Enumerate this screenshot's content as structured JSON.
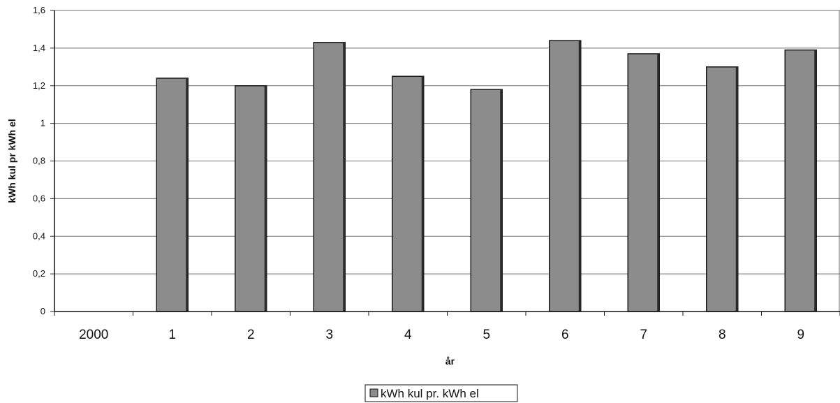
{
  "chart_data": {
    "type": "bar",
    "title": "",
    "xlabel": "år",
    "ylabel": "kWh kul pr kWh el",
    "categories": [
      "2000",
      "1",
      "2",
      "3",
      "4",
      "5",
      "6",
      "7",
      "8",
      "9"
    ],
    "series": [
      {
        "name": "kWh kul pr. kWh el",
        "values": [
          null,
          1.24,
          1.2,
          1.43,
          1.25,
          1.18,
          1.44,
          1.37,
          1.3,
          1.39
        ],
        "color": "#8c8c8c"
      }
    ],
    "ylim": [
      0,
      1.6
    ],
    "yticks": [
      "0",
      "0,2",
      "0,4",
      "0,6",
      "0,8",
      "1",
      "1,2",
      "1,4",
      "1,6"
    ],
    "grid": true,
    "legend_position": "bottom-center"
  }
}
